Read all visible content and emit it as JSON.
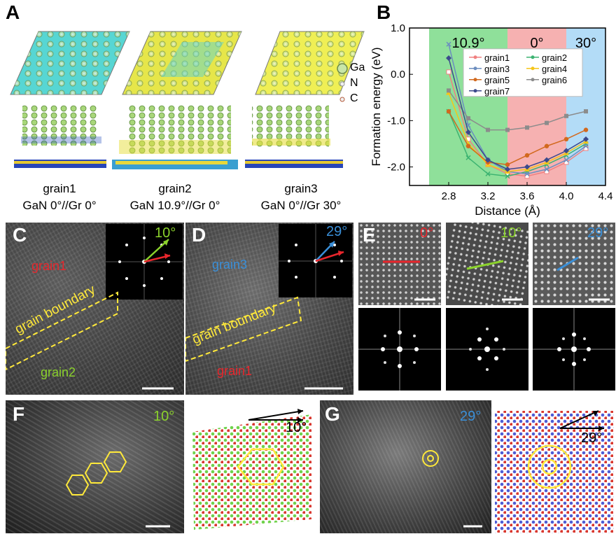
{
  "panels": {
    "a": {
      "letter": "A",
      "grains": [
        {
          "name": "grain1",
          "caption": "GaN 0°//Gr 0°"
        },
        {
          "name": "grain2",
          "caption": "GaN 10.9°//Gr 0°"
        },
        {
          "name": "grain3",
          "caption": "GaN 0°//Gr 30°"
        }
      ],
      "atoms": [
        "Ga",
        "N",
        "C"
      ]
    },
    "b": {
      "letter": "B"
    },
    "c": {
      "letter": "C",
      "angle": "10°",
      "grain_top": "grain1",
      "grain_bottom": "grain2",
      "boundary": "grain boundary"
    },
    "d": {
      "letter": "D",
      "angle": "29°",
      "grain_top": "grain3",
      "grain_bottom": "grain1",
      "boundary": "grain boundary"
    },
    "e": {
      "letter": "E",
      "angles": [
        "0°",
        "10°",
        "29°"
      ]
    },
    "f": {
      "letter": "F",
      "angle_img": "10°",
      "angle_model": "10°"
    },
    "g": {
      "letter": "G",
      "angle_img": "29°",
      "angle_model": "29°"
    }
  },
  "colors": {
    "grain1": "#e8262c",
    "grain2": "#8bd22c",
    "grain3": "#3a8fd8",
    "yellow": "#ffe93a",
    "region_green": "#8fe09a",
    "region_red": "#f6b1b1",
    "region_blue": "#b3dcf7"
  },
  "chart_data": {
    "type": "line",
    "title": "",
    "xlabel": "Distance (Å)",
    "ylabel": "Formation energy (eV)",
    "xlim": [
      2.4,
      4.4
    ],
    "ylim": [
      -2.4,
      1.0
    ],
    "xticks": [
      "2.8",
      "3.2",
      "3.6",
      "4.0",
      "4.4"
    ],
    "yticks": [
      "1.0",
      "0.0",
      "-1.0",
      "-2.0"
    ],
    "regions": [
      {
        "label": "10.9°",
        "x0": 2.6,
        "x1": 3.4,
        "color": "region_green"
      },
      {
        "label": "0°",
        "x0": 3.4,
        "x1": 4.0,
        "color": "region_red"
      },
      {
        "label": "30°",
        "x0": 4.0,
        "x1": 4.4,
        "color": "region_blue"
      }
    ],
    "grid": false,
    "legend_position": "top-right",
    "series": [
      {
        "name": "grain1",
        "color": "#f08080",
        "marker": "square-open",
        "x": [
          2.8,
          3.0,
          3.2,
          3.4,
          3.6,
          3.8,
          4.0,
          4.2
        ],
        "y": [
          0.05,
          -1.4,
          -1.95,
          -2.15,
          -2.2,
          -2.1,
          -1.9,
          -1.6
        ]
      },
      {
        "name": "grain2",
        "color": "#3cb371",
        "marker": "x",
        "x": [
          2.8,
          3.0,
          3.2,
          3.4,
          3.6,
          3.8,
          4.0,
          4.2
        ],
        "y": [
          -0.8,
          -1.8,
          -2.15,
          -2.2,
          -2.1,
          -1.95,
          -1.75,
          -1.5
        ]
      },
      {
        "name": "grain3",
        "color": "#6c8ebf",
        "marker": "x",
        "x": [
          2.8,
          3.0,
          3.2,
          3.4,
          3.6,
          3.8,
          4.0,
          4.2
        ],
        "y": [
          0.65,
          -1.1,
          -1.85,
          -2.1,
          -2.15,
          -2.05,
          -1.85,
          -1.55
        ]
      },
      {
        "name": "grain4",
        "color": "#f5c518",
        "marker": "triangle",
        "x": [
          2.8,
          3.0,
          3.2,
          3.4,
          3.6,
          3.8,
          4.0,
          4.2
        ],
        "y": [
          -0.4,
          -1.5,
          -1.95,
          -2.1,
          -2.05,
          -1.9,
          -1.7,
          -1.45
        ]
      },
      {
        "name": "grain5",
        "color": "#d2691e",
        "marker": "circle",
        "x": [
          2.8,
          3.0,
          3.2,
          3.4,
          3.6,
          3.8,
          4.0,
          4.2
        ],
        "y": [
          -0.8,
          -1.55,
          -1.9,
          -1.95,
          -1.75,
          -1.55,
          -1.4,
          -1.2
        ]
      },
      {
        "name": "grain6",
        "color": "#8c8c8c",
        "marker": "square",
        "x": [
          2.8,
          3.0,
          3.2,
          3.4,
          3.6,
          3.8,
          4.0,
          4.2
        ],
        "y": [
          -0.35,
          -0.95,
          -1.2,
          -1.2,
          -1.15,
          -1.05,
          -0.9,
          -0.8
        ]
      },
      {
        "name": "grain7",
        "color": "#3b4a8c",
        "marker": "diamond",
        "x": [
          2.8,
          3.0,
          3.2,
          3.4,
          3.6,
          3.8,
          4.0,
          4.2
        ],
        "y": [
          0.35,
          -1.25,
          -1.85,
          -2.05,
          -2.0,
          -1.85,
          -1.65,
          -1.4
        ]
      }
    ]
  }
}
